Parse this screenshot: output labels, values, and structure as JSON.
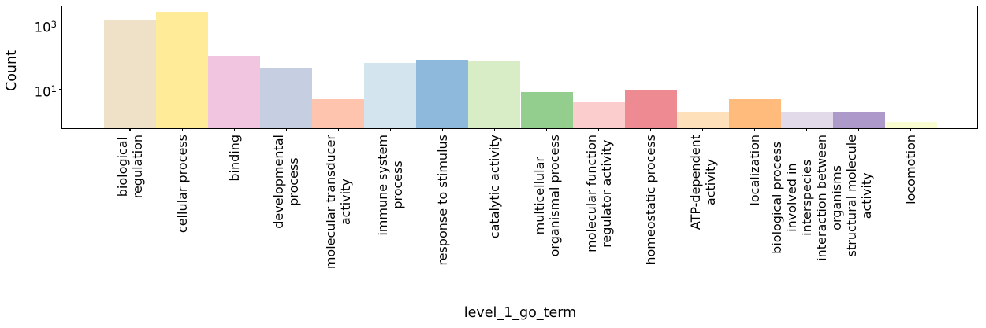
{
  "figure": {
    "background": "#ffffff",
    "axis_color": "#000000"
  },
  "chart_data": {
    "type": "bar",
    "title": "",
    "xlabel": "level_1_go_term",
    "ylabel": "Count",
    "yscale": "log",
    "ylim": [
      0.63,
      3600
    ],
    "grid": false,
    "legend": "none",
    "yticks": [
      {
        "base": "10",
        "exp": "3",
        "value": 1000
      },
      {
        "base": "10",
        "exp": "1",
        "value": 10
      }
    ],
    "categories": [
      "biological\nregulation",
      "cellular process",
      "binding",
      "developmental\nprocess",
      "molecular transducer\nactivity",
      "immune system\nprocess",
      "response to stimulus",
      "catalytic activity",
      "multicellular\norganismal process",
      "molecular function\nregulator activity",
      "homeostatic process",
      "ATP-dependent\nactivity",
      "localization",
      "biological process\ninvolved in\ninterspecies\ninteraction between\norganisms",
      "structural molecule\nactivity",
      "locomotion"
    ],
    "values": [
      1400,
      2400,
      105,
      46,
      5,
      65,
      81,
      78,
      8,
      4,
      9,
      2,
      5,
      2,
      2,
      1
    ],
    "colors": [
      "#efe1c8",
      "#ffeb98",
      "#f1c4e0",
      "#c6cfe2",
      "#ffc4ae",
      "#d3e4ef",
      "#8fb9dc",
      "#d8edc6",
      "#94ce8f",
      "#fccdcd",
      "#ee8a91",
      "#fee0ba",
      "#ffbb7b",
      "#e2d9e9",
      "#ad9acb",
      "#fafcd1"
    ]
  }
}
